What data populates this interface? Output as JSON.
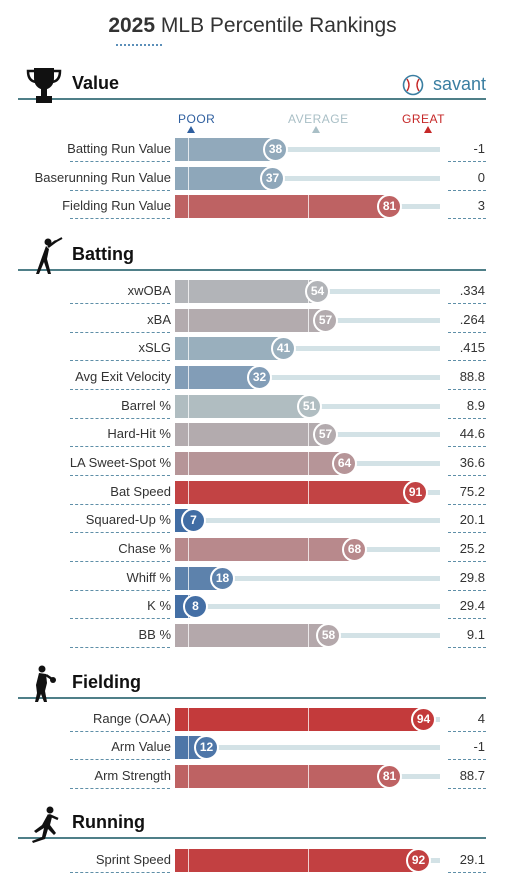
{
  "title": {
    "year": "2025",
    "text": "MLB Percentile Rankings"
  },
  "brand": {
    "name": "savant"
  },
  "scale": {
    "poor": "POOR",
    "average": "AVERAGE",
    "great": "GREAT",
    "colors": {
      "poor": "#2f5f9f",
      "average": "#9fb8c0",
      "great": "#c62828"
    }
  },
  "sections": [
    {
      "id": "value",
      "title": "Value",
      "icon": "trophy-icon"
    },
    {
      "id": "batting",
      "title": "Batting",
      "icon": "batter-icon"
    },
    {
      "id": "fielding",
      "title": "Fielding",
      "icon": "fielder-icon"
    },
    {
      "id": "running",
      "title": "Running",
      "icon": "runner-icon"
    }
  ],
  "chart_data": {
    "type": "bar",
    "xlim": [
      0,
      100
    ],
    "categories": [
      "Batting Run Value",
      "Baserunning Run Value",
      "Fielding Run Value",
      "xwOBA",
      "xBA",
      "xSLG",
      "Avg Exit Velocity",
      "Barrel %",
      "Hard-Hit %",
      "LA Sweet-Spot %",
      "Bat Speed",
      "Squared-Up %",
      "Chase %",
      "Whiff %",
      "K %",
      "BB %",
      "Range (OAA)",
      "Arm Value",
      "Arm Strength",
      "Sprint Speed"
    ],
    "values": [
      38,
      37,
      81,
      54,
      57,
      41,
      32,
      51,
      57,
      64,
      91,
      7,
      68,
      18,
      8,
      58,
      94,
      12,
      81,
      92
    ],
    "stat_values": [
      "-1",
      "0",
      "3",
      ".334",
      ".264",
      ".415",
      "88.8",
      "8.9",
      "44.6",
      "36.6",
      "75.2",
      "20.1",
      "25.2",
      "29.8",
      "29.4",
      "9.1",
      "4",
      "-1",
      "88.7",
      "29.1"
    ]
  },
  "rows": [
    {
      "label": "Batting Run Value",
      "pct": "38",
      "stat": "-1"
    },
    {
      "label": "Baserunning Run Value",
      "pct": "37",
      "stat": "0"
    },
    {
      "label": "Fielding Run Value",
      "pct": "81",
      "stat": "3"
    },
    {
      "label": "xwOBA",
      "pct": "54",
      "stat": ".334"
    },
    {
      "label": "xBA",
      "pct": "57",
      "stat": ".264"
    },
    {
      "label": "xSLG",
      "pct": "41",
      "stat": ".415"
    },
    {
      "label": "Avg Exit Velocity",
      "pct": "32",
      "stat": "88.8"
    },
    {
      "label": "Barrel %",
      "pct": "51",
      "stat": "8.9"
    },
    {
      "label": "Hard-Hit %",
      "pct": "57",
      "stat": "44.6"
    },
    {
      "label": "LA Sweet-Spot %",
      "pct": "64",
      "stat": "36.6"
    },
    {
      "label": "Bat Speed",
      "pct": "91",
      "stat": "75.2"
    },
    {
      "label": "Squared-Up %",
      "pct": "7",
      "stat": "20.1"
    },
    {
      "label": "Chase %",
      "pct": "68",
      "stat": "25.2"
    },
    {
      "label": "Whiff %",
      "pct": "18",
      "stat": "29.8"
    },
    {
      "label": "K %",
      "pct": "8",
      "stat": "29.4"
    },
    {
      "label": "BB %",
      "pct": "58",
      "stat": "9.1"
    },
    {
      "label": "Range (OAA)",
      "pct": "94",
      "stat": "4"
    },
    {
      "label": "Arm Value",
      "pct": "12",
      "stat": "-1"
    },
    {
      "label": "Arm Strength",
      "pct": "81",
      "stat": "88.7"
    },
    {
      "label": "Sprint Speed",
      "pct": "92",
      "stat": "29.1"
    }
  ]
}
